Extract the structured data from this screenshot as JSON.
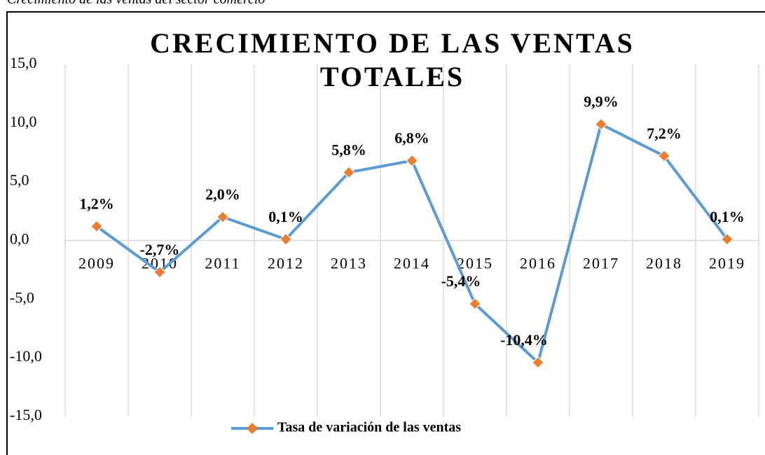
{
  "caption": "Crecimiento de las ventas del sector comercio",
  "chart_data": {
    "type": "line",
    "title": "CRECIMIENTO DE LAS VENTAS TOTALES",
    "categories": [
      "2009",
      "2010",
      "2011",
      "2012",
      "2013",
      "2014",
      "2015",
      "2016",
      "2017",
      "2018",
      "2019"
    ],
    "series": [
      {
        "name": "Tasa de variación de las ventas",
        "color": "#5b9bd5",
        "marker_color": "#ed7d31",
        "values": [
          1.2,
          -2.7,
          2.0,
          0.1,
          5.8,
          6.8,
          -5.4,
          -10.4,
          9.9,
          7.2,
          0.1
        ],
        "value_labels": [
          "1,2%",
          "-2,7%",
          "2,0%",
          "0,1%",
          "5,8%",
          "6,8%",
          "-5,4%",
          "-10,4%",
          "9,9%",
          "7,2%",
          "0,1%"
        ]
      }
    ],
    "ylim": [
      -15,
      15
    ],
    "yticks": [
      {
        "value": -15,
        "label": "-15,0"
      },
      {
        "value": -10,
        "label": "-10,0"
      },
      {
        "value": -5,
        "label": "-5,0"
      },
      {
        "value": 0,
        "label": "0,0"
      },
      {
        "value": 5,
        "label": "5,0"
      },
      {
        "value": 10,
        "label": "10,0"
      },
      {
        "value": 15,
        "label": "15,0"
      }
    ],
    "grid": "vertical",
    "legend": "bottom"
  }
}
